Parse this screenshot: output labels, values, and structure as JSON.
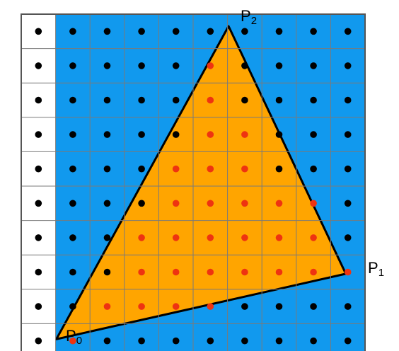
{
  "grid": {
    "columns": 10,
    "rows": 10,
    "colors": {
      "outside_column": "#ffffff",
      "background": "#1199ee",
      "triangle": "#ffa500",
      "grid_line": "#7a7a7a",
      "border": "#555555",
      "edge": "#000000",
      "sample_outside": "#000000",
      "sample_inside": "#ee3311"
    },
    "uncovered_columns": [
      0
    ],
    "covered_samples": [
      [
        5,
        1
      ],
      [
        5,
        2
      ],
      [
        5,
        3
      ],
      [
        6,
        3
      ],
      [
        4,
        4
      ],
      [
        5,
        4
      ],
      [
        6,
        4
      ],
      [
        4,
        5
      ],
      [
        5,
        5
      ],
      [
        6,
        5
      ],
      [
        7,
        5
      ],
      [
        8,
        5
      ],
      [
        3,
        6
      ],
      [
        4,
        6
      ],
      [
        5,
        6
      ],
      [
        6,
        6
      ],
      [
        7,
        6
      ],
      [
        8,
        6
      ],
      [
        3,
        7
      ],
      [
        4,
        7
      ],
      [
        5,
        7
      ],
      [
        6,
        7
      ],
      [
        7,
        7
      ],
      [
        8,
        7
      ],
      [
        9,
        7
      ],
      [
        2,
        8
      ],
      [
        3,
        8
      ],
      [
        4,
        8
      ],
      [
        5,
        8
      ],
      [
        1,
        9
      ]
    ]
  },
  "triangle": {
    "vertices": [
      {
        "name": "P",
        "sub": "0",
        "col": 1.02,
        "row": 9.45
      },
      {
        "name": "P",
        "sub": "1",
        "col": 9.44,
        "row": 7.55
      },
      {
        "name": "P",
        "sub": "2",
        "col": 6.03,
        "row": 0.35
      }
    ]
  }
}
